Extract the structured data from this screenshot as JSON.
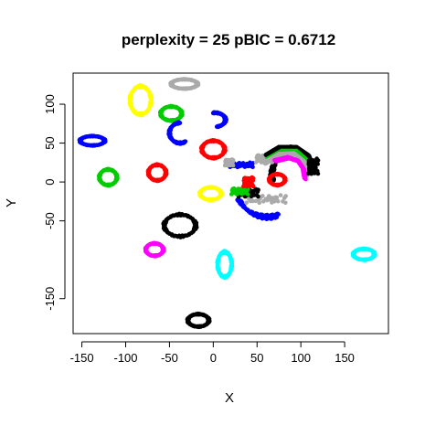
{
  "chart_data": {
    "type": "scatter",
    "title": "perplexity = 25 pBIC = 0.6712",
    "xlabel": "X",
    "ylabel": "Y",
    "xlim": [
      -160,
      200
    ],
    "ylim": [
      -195,
      140
    ],
    "xticks": [
      -150,
      -100,
      -50,
      0,
      50,
      100,
      150
    ],
    "yticks": [
      100,
      50,
      0,
      -50,
      -150
    ],
    "xtick_labels": [
      "-150",
      "-100",
      "-50",
      "0",
      "50",
      "100",
      "150"
    ],
    "ytick_labels": [
      "100",
      "50",
      "0",
      "-50",
      "-150"
    ],
    "grid": false,
    "legend": false,
    "clusters": [
      {
        "color": "#0000ff",
        "shape": "ring",
        "cx": -138,
        "cy": 53,
        "rx": 14,
        "ry": 6
      },
      {
        "color": "#00cc00",
        "shape": "ring",
        "cx": -120,
        "cy": 6,
        "rx": 10,
        "ry": 10
      },
      {
        "color": "#ffff00",
        "shape": "ring",
        "cx": -83,
        "cy": 105,
        "rx": 12,
        "ry": 18
      },
      {
        "color": "#ff0000",
        "shape": "ring",
        "cx": -64,
        "cy": 12,
        "rx": 10,
        "ry": 10
      },
      {
        "color": "#aaaaaa",
        "shape": "ring",
        "cx": -33,
        "cy": 126,
        "rx": 15,
        "ry": 6
      },
      {
        "color": "#00cc00",
        "shape": "ring",
        "cx": -48,
        "cy": 88,
        "rx": 12,
        "ry": 9
      },
      {
        "color": "#0000ff",
        "shape": "arc",
        "cx": -38,
        "cy": 63,
        "rx": 12,
        "ry": 13,
        "a0": 90,
        "a1": 300
      },
      {
        "color": "#0000ff",
        "shape": "arc",
        "cx": 2,
        "cy": 80,
        "rx": 12,
        "ry": 9,
        "a0": -80,
        "a1": 100
      },
      {
        "color": "#ff0000",
        "shape": "ring",
        "cx": 0,
        "cy": 42,
        "rx": 13,
        "ry": 11
      },
      {
        "color": "#000000",
        "shape": "ring",
        "cx": -38,
        "cy": -56,
        "rx": 18,
        "ry": 14
      },
      {
        "color": "#ffff00",
        "shape": "ring",
        "cx": -3,
        "cy": -15,
        "rx": 12,
        "ry": 8
      },
      {
        "color": "#ff00ff",
        "shape": "ring",
        "cx": -67,
        "cy": -87,
        "rx": 10,
        "ry": 8
      },
      {
        "color": "#00ffff",
        "shape": "ring",
        "cx": 13,
        "cy": -106,
        "rx": 8,
        "ry": 16
      },
      {
        "color": "#000000",
        "shape": "ring",
        "cx": -17,
        "cy": -178,
        "rx": 12,
        "ry": 8
      },
      {
        "color": "#00ffff",
        "shape": "ring",
        "cx": 172,
        "cy": -93,
        "rx": 12,
        "ry": 7
      },
      {
        "color": "#0000ff",
        "shape": "arc",
        "cx": 62,
        "cy": -10,
        "rx": 35,
        "ry": 35,
        "a0": 200,
        "a1": 290
      },
      {
        "color": "#000000",
        "shape": "arc",
        "cx": 95,
        "cy": 8,
        "rx": 28,
        "ry": 36,
        "a0": 100,
        "a1": 190
      },
      {
        "color": "#ff0000",
        "shape": "ring",
        "cx": 73,
        "cy": 3,
        "rx": 9,
        "ry": 7
      },
      {
        "color": "#aaaaaa",
        "shape": "blob",
        "cx": 60,
        "cy": -22,
        "rx": 24,
        "ry": 5
      },
      {
        "color": "#000000",
        "shape": "blob",
        "cx": 40,
        "cy": -14,
        "rx": 12,
        "ry": 5
      },
      {
        "color": "#00cc00",
        "shape": "blob",
        "cx": 30,
        "cy": -12,
        "rx": 10,
        "ry": 4
      },
      {
        "color": "#ff0000",
        "shape": "blob",
        "cx": 40,
        "cy": 0,
        "rx": 6,
        "ry": 6
      },
      {
        "color": "#0000ff",
        "shape": "blob",
        "cx": 32,
        "cy": 22,
        "rx": 14,
        "ry": 3
      },
      {
        "color": "#aaaaaa",
        "shape": "blob",
        "cx": 58,
        "cy": 30,
        "rx": 10,
        "ry": 5
      },
      {
        "color": "#aaaaaa",
        "shape": "blob",
        "cx": 18,
        "cy": 25,
        "rx": 5,
        "ry": 4
      },
      {
        "color": "#000000",
        "shape": "curve",
        "points": [
          [
            60,
            35
          ],
          [
            75,
            45
          ],
          [
            95,
            45
          ],
          [
            108,
            35
          ],
          [
            115,
            15
          ]
        ]
      },
      {
        "color": "#00cc00",
        "shape": "curve",
        "points": [
          [
            62,
            30
          ],
          [
            78,
            40
          ],
          [
            95,
            40
          ],
          [
            105,
            30
          ],
          [
            110,
            12
          ]
        ]
      },
      {
        "color": "#aaaaaa",
        "shape": "curve",
        "points": [
          [
            58,
            25
          ],
          [
            75,
            36
          ],
          [
            92,
            37
          ],
          [
            102,
            28
          ],
          [
            106,
            10
          ]
        ]
      },
      {
        "color": "#ff00ff",
        "shape": "curve",
        "points": [
          [
            70,
            28
          ],
          [
            85,
            32
          ],
          [
            96,
            28
          ],
          [
            102,
            18
          ],
          [
            104,
            5
          ]
        ]
      },
      {
        "color": "#000000",
        "shape": "blob",
        "cx": 114,
        "cy": 20,
        "rx": 6,
        "ry": 10
      }
    ]
  }
}
